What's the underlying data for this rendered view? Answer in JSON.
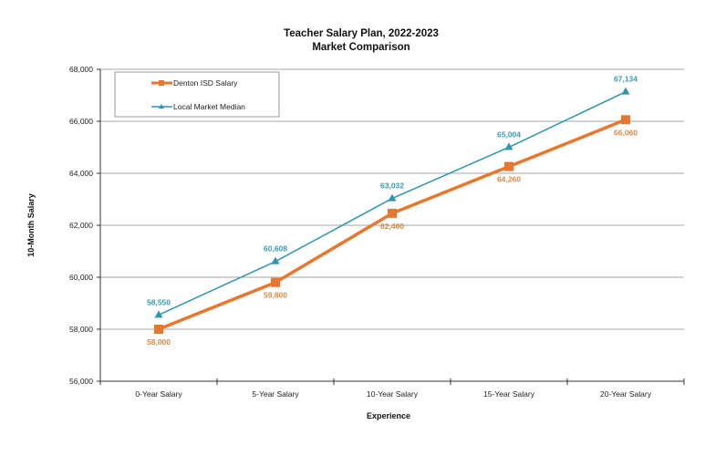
{
  "chart_data": {
    "type": "line",
    "title": "Teacher Salary Plan, 2022-2023",
    "subtitle": "Market Comparison",
    "xlabel": "Experience",
    "ylabel": "10-Month Salary",
    "categories": [
      "0-Year Salary",
      "5-Year Salary",
      "10-Year Salary",
      "15-Year Salary",
      "20-Year Salary"
    ],
    "ylim": [
      56000,
      68000
    ],
    "yticks": [
      56000,
      58000,
      60000,
      62000,
      64000,
      66000,
      68000
    ],
    "ytick_labels": [
      "56,000",
      "58,000",
      "60,000",
      "62,000",
      "64,000",
      "66,000",
      "68,000"
    ],
    "grid": true,
    "legend_position": "top-left",
    "series": [
      {
        "name": "Denton ISD Salary",
        "color": "#E8762D",
        "marker": "square",
        "values": [
          58000,
          59800,
          62460,
          64260,
          66060
        ],
        "labels": [
          "58,000",
          "59,800",
          "62,460",
          "64,260",
          "66,060"
        ],
        "label_color": "#D98a45"
      },
      {
        "name": "Local Market Median",
        "color": "#2E95AE",
        "marker": "triangle",
        "values": [
          58550,
          60608,
          63032,
          65004,
          67134
        ],
        "labels": [
          "58,550",
          "60,608",
          "63,032",
          "65,004",
          "67,134"
        ],
        "label_color": "#3A9AB5"
      }
    ]
  }
}
